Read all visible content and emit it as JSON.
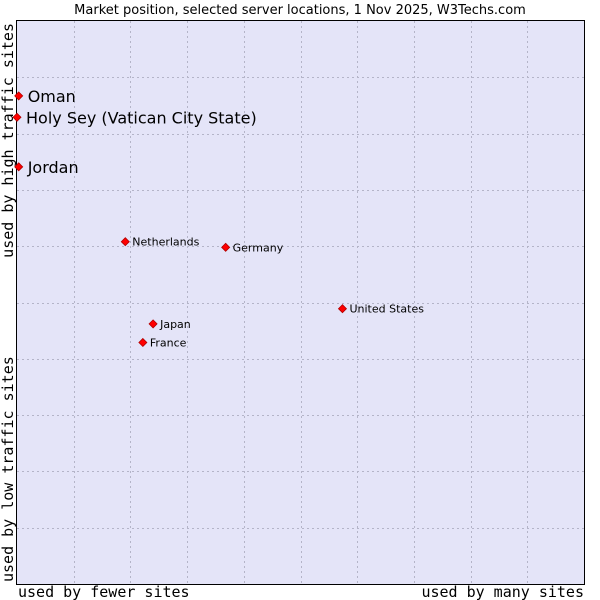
{
  "chart_data": {
    "type": "scatter",
    "title": "Market position, selected server locations, 1 Nov 2025, W3Techs.com",
    "xlabel_left": "used by fewer sites",
    "xlabel_right": "used by many sites",
    "ylabel_top": "used by high traffic sites",
    "ylabel_bottom": "used by low traffic sites",
    "xlim": [
      0,
      100
    ],
    "ylim": [
      0,
      100
    ],
    "grid": true,
    "colors": {
      "plot_background": "#e4e4f8",
      "border": "#000000",
      "point_fill": "#ff0000",
      "point_stroke": "#b00000",
      "grid": "#b4b4c8"
    },
    "points": [
      {
        "label": "Oman",
        "x": 0.3,
        "y": 86.7,
        "size": "large"
      },
      {
        "label": "Holy Sey (Vatican City State)",
        "x": 0.0,
        "y": 82.9,
        "size": "large"
      },
      {
        "label": "Jordan",
        "x": 0.3,
        "y": 74.1,
        "size": "large"
      },
      {
        "label": "Netherlands",
        "x": 19.1,
        "y": 60.8,
        "size": "small"
      },
      {
        "label": "Germany",
        "x": 36.8,
        "y": 59.8,
        "size": "small"
      },
      {
        "label": "United States",
        "x": 57.4,
        "y": 48.9,
        "size": "small"
      },
      {
        "label": "Japan",
        "x": 24.0,
        "y": 46.2,
        "size": "small"
      },
      {
        "label": "France",
        "x": 22.2,
        "y": 42.9,
        "size": "small"
      }
    ]
  }
}
